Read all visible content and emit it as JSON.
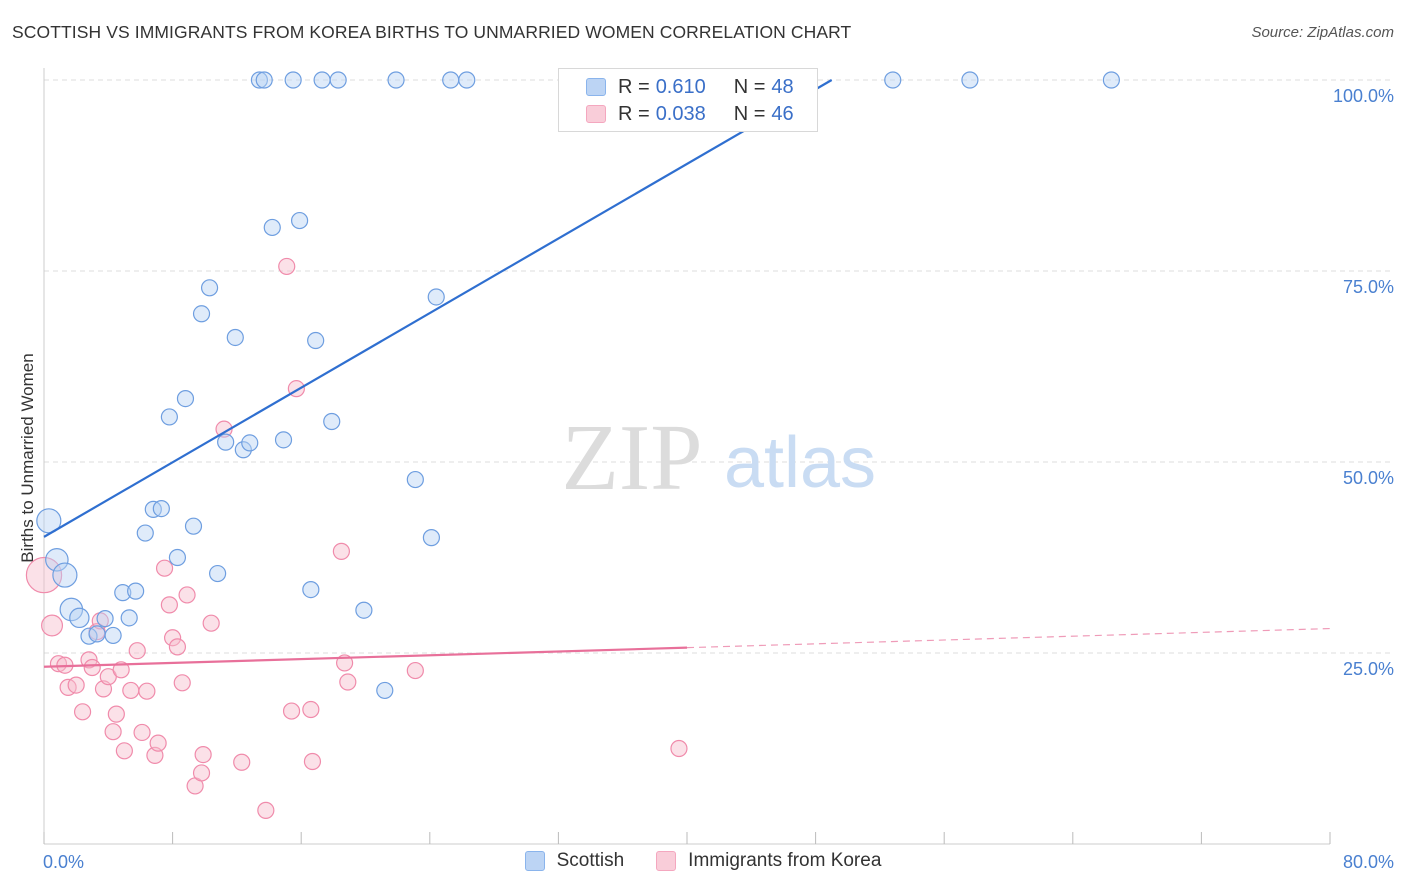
{
  "title": "SCOTTISH VS IMMIGRANTS FROM KOREA BIRTHS TO UNMARRIED WOMEN CORRELATION CHART",
  "source": "Source: ZipAtlas.com",
  "watermark": {
    "zip": "ZIP",
    "atlas": "atlas"
  },
  "legend_top": [
    {
      "r_label": "R =",
      "r_value": "0.610",
      "n_label": "N =",
      "n_value": "48"
    },
    {
      "r_label": "R =",
      "r_value": "0.038",
      "n_label": "N =",
      "n_value": "46"
    }
  ],
  "legend_bottom": [
    "Scottish",
    "Immigrants from Korea"
  ],
  "chart_data": {
    "type": "scatter",
    "title": "SCOTTISH VS IMMIGRANTS FROM KOREA BIRTHS TO UNMARRIED WOMEN CORRELATION CHART",
    "xlabel": "",
    "ylabel": "Births to Unmarried Women",
    "xlim": [
      0,
      80
    ],
    "ylim": [
      0,
      100
    ],
    "x_tick_labels": [
      "0.0%",
      "80.0%"
    ],
    "y_tick_labels": [
      "100.0%",
      "75.0%",
      "50.0%",
      "25.0%"
    ],
    "y_ticks": [
      100,
      75,
      50,
      25
    ],
    "grid": true,
    "legend_position": "top-center",
    "colors": {
      "Scottish": "#8ab4ec",
      "Immigrants from Korea": "#f4a7bf",
      "scottish_line": "#2f6fd0",
      "korea_line": "#e8709a"
    },
    "series": [
      {
        "name": "Scottish",
        "r": 0.61,
        "n": 48,
        "trend": {
          "x": [
            0,
            49
          ],
          "y": [
            40.2,
            100
          ]
        },
        "points": [
          [
            0.3,
            42.3,
            1.5
          ],
          [
            0.8,
            37.2,
            1.4
          ],
          [
            1.3,
            35.2,
            1.5
          ],
          [
            1.7,
            30.7,
            1.4
          ],
          [
            2.2,
            29.6,
            1.2
          ],
          [
            2.8,
            27.2,
            1.0
          ],
          [
            3.3,
            27.5,
            1.0
          ],
          [
            3.8,
            29.5,
            1.0
          ],
          [
            4.3,
            27.3,
            1.0
          ],
          [
            4.9,
            32.9,
            1.0
          ],
          [
            5.3,
            29.6,
            1.0
          ],
          [
            5.7,
            33.1,
            1.0
          ],
          [
            6.3,
            40.7,
            1.0
          ],
          [
            6.8,
            43.8,
            1.0
          ],
          [
            7.3,
            43.9,
            1.0
          ],
          [
            7.8,
            55.9,
            1.0
          ],
          [
            8.3,
            37.5,
            1.0
          ],
          [
            8.8,
            58.3,
            1.0
          ],
          [
            9.3,
            41.6,
            1.0
          ],
          [
            9.8,
            69.4,
            1.0
          ],
          [
            10.3,
            72.8,
            1.0
          ],
          [
            10.8,
            35.4,
            1.0
          ],
          [
            11.3,
            52.6,
            1.0
          ],
          [
            11.9,
            66.3,
            1.0
          ],
          [
            12.4,
            51.6,
            1.0
          ],
          [
            12.8,
            52.5,
            1.0
          ],
          [
            13.4,
            100.0,
            1.0
          ],
          [
            13.7,
            100.0,
            1.0
          ],
          [
            14.2,
            80.7,
            1.0
          ],
          [
            14.9,
            52.9,
            1.0
          ],
          [
            15.5,
            100.0,
            1.0
          ],
          [
            15.9,
            81.6,
            1.0
          ],
          [
            16.6,
            33.3,
            1.0
          ],
          [
            16.9,
            65.9,
            1.0
          ],
          [
            17.3,
            100.0,
            1.0
          ],
          [
            17.9,
            55.3,
            1.0
          ],
          [
            18.3,
            100.0,
            1.0
          ],
          [
            19.9,
            30.6,
            1.0
          ],
          [
            21.2,
            20.1,
            1.0
          ],
          [
            21.9,
            100.0,
            1.0
          ],
          [
            23.1,
            47.7,
            1.0
          ],
          [
            24.1,
            40.1,
            1.0
          ],
          [
            24.4,
            71.6,
            1.0
          ],
          [
            25.3,
            100.0,
            1.0
          ],
          [
            26.3,
            100.0,
            1.0
          ],
          [
            52.8,
            100.0,
            1.0
          ],
          [
            57.6,
            100.0,
            1.0
          ],
          [
            66.4,
            100.0,
            1.0
          ]
        ]
      },
      {
        "name": "Immigrants from Korea",
        "r": 0.038,
        "n": 46,
        "trend": {
          "x": [
            0,
            40,
            80
          ],
          "y": [
            23.2,
            25.7,
            28.2
          ]
        },
        "points": [
          [
            0.0,
            35.2,
            2.2
          ],
          [
            0.5,
            28.6,
            1.3
          ],
          [
            0.9,
            23.6,
            1.0
          ],
          [
            1.3,
            23.4,
            1.0
          ],
          [
            1.5,
            20.5,
            1.0
          ],
          [
            2.0,
            20.8,
            1.0
          ],
          [
            2.4,
            17.3,
            1.0
          ],
          [
            2.8,
            24.1,
            1.0
          ],
          [
            3.0,
            23.1,
            1.0
          ],
          [
            3.3,
            27.8,
            1.0
          ],
          [
            3.5,
            29.2,
            1.0
          ],
          [
            3.7,
            20.3,
            1.0
          ],
          [
            4.0,
            21.9,
            1.0
          ],
          [
            4.3,
            14.7,
            1.0
          ],
          [
            4.5,
            17.0,
            1.0
          ],
          [
            4.8,
            22.8,
            1.0
          ],
          [
            5.0,
            12.2,
            1.0
          ],
          [
            5.4,
            20.1,
            1.0
          ],
          [
            5.8,
            25.3,
            1.0
          ],
          [
            6.1,
            14.6,
            1.0
          ],
          [
            6.4,
            20.0,
            1.0
          ],
          [
            6.9,
            11.6,
            1.0
          ],
          [
            7.1,
            13.2,
            1.0
          ],
          [
            7.5,
            36.1,
            1.0
          ],
          [
            7.8,
            31.3,
            1.0
          ],
          [
            8.0,
            27.0,
            1.0
          ],
          [
            8.3,
            25.8,
            1.0
          ],
          [
            8.6,
            21.1,
            1.0
          ],
          [
            8.9,
            32.6,
            1.0
          ],
          [
            9.4,
            7.6,
            1.0
          ],
          [
            9.8,
            9.3,
            1.0
          ],
          [
            9.9,
            11.7,
            1.0
          ],
          [
            10.4,
            28.9,
            1.0
          ],
          [
            11.2,
            54.3,
            1.0
          ],
          [
            12.3,
            10.7,
            1.0
          ],
          [
            13.8,
            4.4,
            1.0
          ],
          [
            15.1,
            75.6,
            1.0
          ],
          [
            15.4,
            17.4,
            1.0
          ],
          [
            15.7,
            59.6,
            1.0
          ],
          [
            16.6,
            17.6,
            1.0
          ],
          [
            16.7,
            10.8,
            1.0
          ],
          [
            18.5,
            38.3,
            1.0
          ],
          [
            18.7,
            23.7,
            1.0
          ],
          [
            18.9,
            21.2,
            1.0
          ],
          [
            23.1,
            22.7,
            1.0
          ],
          [
            39.5,
            12.5,
            1.0
          ]
        ]
      }
    ]
  }
}
